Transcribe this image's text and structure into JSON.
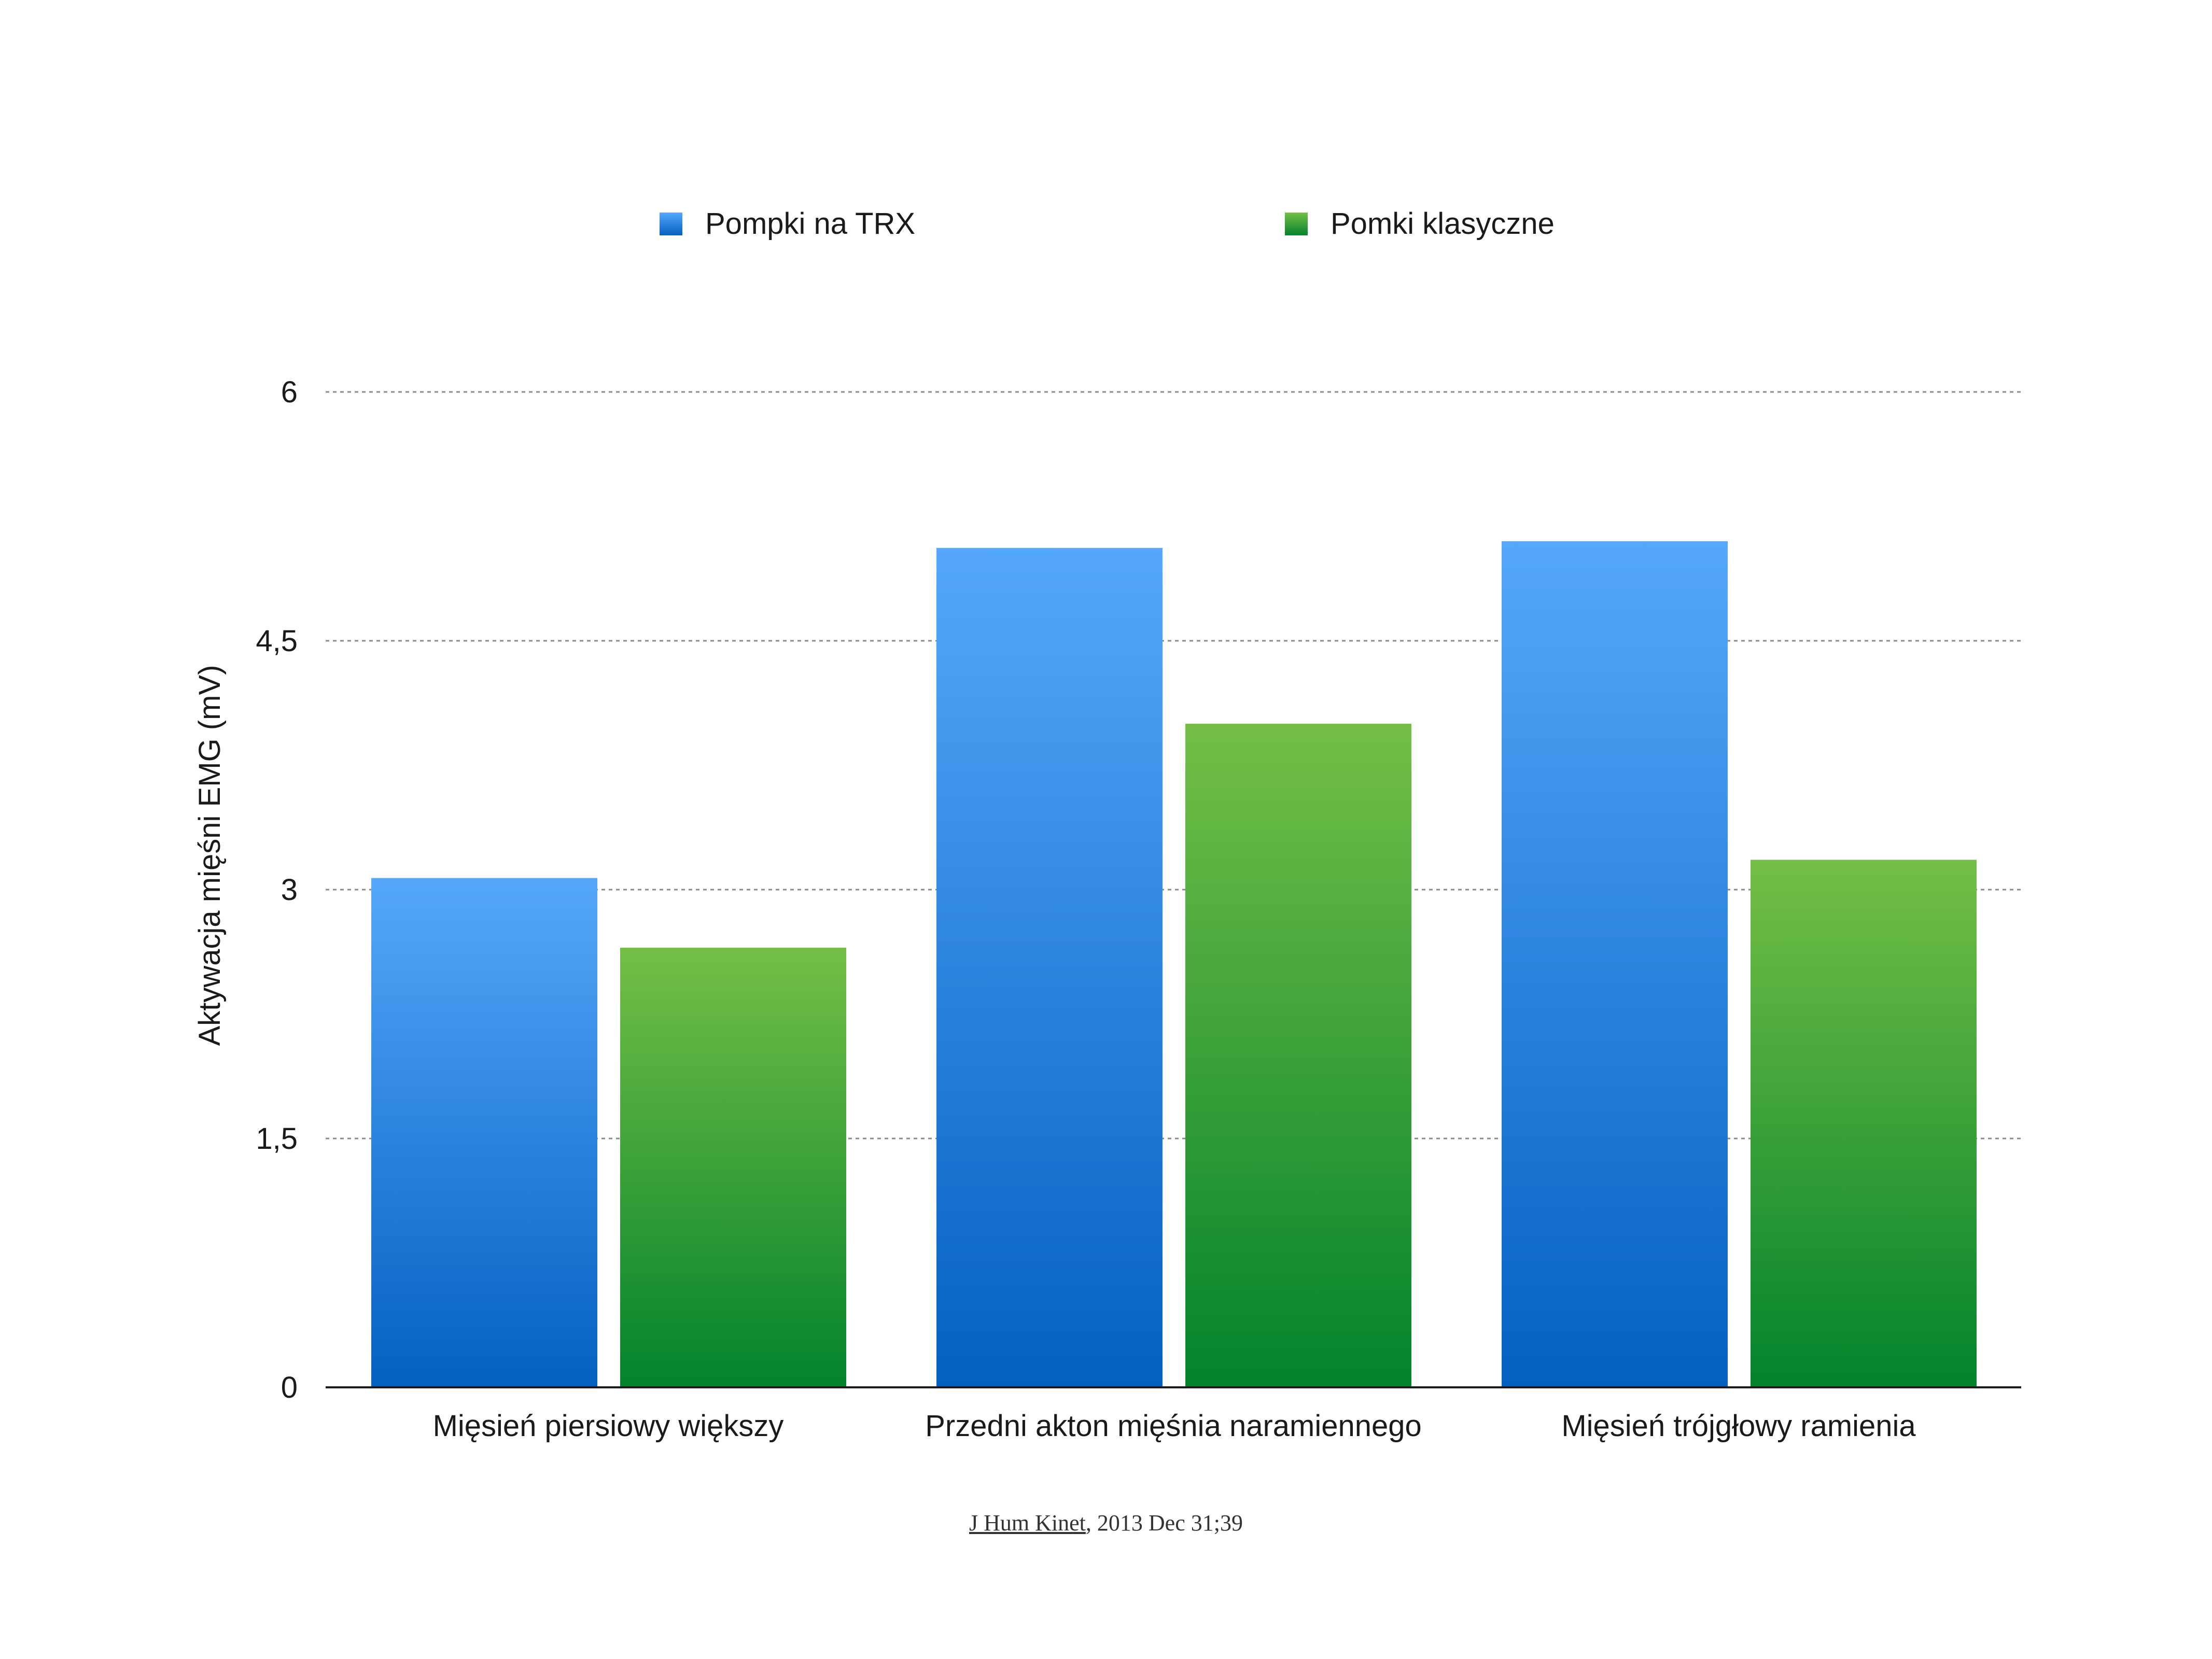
{
  "chart_data": {
    "type": "bar",
    "categories": [
      "Mięsień piersiowy większy",
      "Przedni akton mięśnia naramiennego",
      "Mięsień trójgłowy ramienia"
    ],
    "series": [
      {
        "name": "Pompki na TRX",
        "values": [
          3.07,
          5.06,
          5.1
        ],
        "color_top": "#55a8fb",
        "color_bottom": "#0560c0"
      },
      {
        "name": "Pomki klasyczne",
        "values": [
          2.65,
          4.0,
          3.18
        ],
        "color_top": "#74bf46",
        "color_bottom": "#02832c"
      }
    ],
    "ylabel": "Aktywacja mięśni EMG (mV)",
    "xlabel": "",
    "ylim": [
      0,
      6
    ],
    "yticks": [
      {
        "value": 0,
        "label": "0"
      },
      {
        "value": 1.5,
        "label": "1,5"
      },
      {
        "value": 3,
        "label": "3"
      },
      {
        "value": 4.5,
        "label": "4,5"
      },
      {
        "value": 6,
        "label": "6"
      }
    ],
    "grid": true,
    "grid_style": "dotted",
    "legend_position": "top"
  },
  "legend": {
    "items": [
      {
        "label": "Pompki na TRX"
      },
      {
        "label": "Pomki klasyczne"
      }
    ]
  },
  "citation": {
    "journal": "J Hum Kinet",
    "rest": ", 2013 Dec 31;39"
  }
}
